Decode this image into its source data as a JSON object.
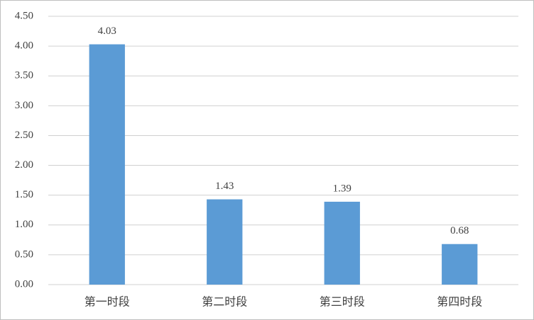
{
  "chart_data": {
    "type": "bar",
    "categories": [
      "第一时段",
      "第二时段",
      "第三时段",
      "第四时段"
    ],
    "values": [
      4.03,
      1.43,
      1.39,
      0.68
    ],
    "color": "#5b9bd5",
    "ylim": [
      0,
      4.5
    ],
    "yticks": [
      {
        "value": 0,
        "label": "0.00"
      },
      {
        "value": 0.5,
        "label": "0.50"
      },
      {
        "value": 1,
        "label": "1.00"
      },
      {
        "value": 1.5,
        "label": "1.50"
      },
      {
        "value": 2,
        "label": "2.00"
      },
      {
        "value": 2.5,
        "label": "2.50"
      },
      {
        "value": 3,
        "label": "3.00"
      },
      {
        "value": 3.5,
        "label": "3.50"
      },
      {
        "value": 4,
        "label": "4.00"
      },
      {
        "value": 4.5,
        "label": "4.50"
      }
    ],
    "grid": true
  }
}
